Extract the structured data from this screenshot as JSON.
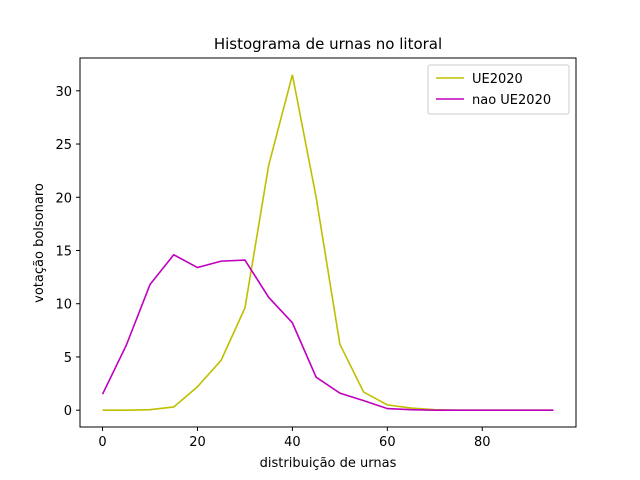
{
  "chart_data": {
    "type": "line",
    "title": "Histograma de urnas no litoral",
    "xlabel": "distribuição de urnas",
    "ylabel": "votação bolsonaro",
    "xlim": [
      -4.75,
      99.75
    ],
    "ylim": [
      -1.58,
      33.08
    ],
    "xticks": [
      0,
      20,
      40,
      60,
      80
    ],
    "yticks": [
      0,
      5,
      10,
      15,
      20,
      25,
      30
    ],
    "grid": false,
    "legend_position": "top-right",
    "x": [
      0,
      5,
      10,
      15,
      20,
      25,
      30,
      35,
      40,
      45,
      50,
      55,
      60,
      65,
      70,
      75,
      80,
      85,
      90,
      95
    ],
    "series": [
      {
        "name": "UE2020",
        "color": "#bfbf00",
        "values": [
          0.0,
          0.0,
          0.05,
          0.3,
          2.2,
          4.7,
          9.6,
          23.0,
          31.5,
          20.0,
          6.2,
          1.7,
          0.5,
          0.2,
          0.05,
          0.0,
          0.0,
          0.0,
          0.0,
          0.0
        ]
      },
      {
        "name": "nao UE2020",
        "color": "#bf00bf",
        "values": [
          1.5,
          6.1,
          11.8,
          14.6,
          13.4,
          14.0,
          14.1,
          10.6,
          8.2,
          3.1,
          1.6,
          0.9,
          0.15,
          0.05,
          0.0,
          0.0,
          0.0,
          0.0,
          0.0,
          0.0
        ]
      }
    ]
  }
}
